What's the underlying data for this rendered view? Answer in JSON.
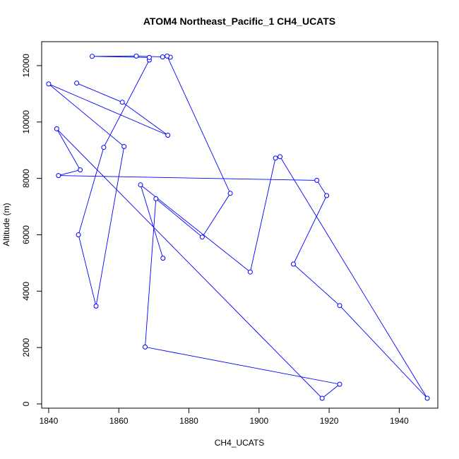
{
  "chart_data": {
    "type": "line",
    "title": "ATOM4 Northeast_Pacific_1 CH4_UCATS",
    "xlabel": "CH4_UCATS",
    "ylabel": "Altitude (m)",
    "xlim": [
      1838,
      1951
    ],
    "ylim": [
      -150,
      12850
    ],
    "xticks": [
      1840,
      1860,
      1880,
      1900,
      1920,
      1940
    ],
    "yticks": [
      0,
      2000,
      4000,
      6000,
      8000,
      10000,
      12000
    ],
    "grid": false,
    "line_color": "#0000ff",
    "marker": "open-circle",
    "series": [
      {
        "x": [
          1848,
          1861,
          1874,
          1840,
          1861.5,
          1853.5,
          1848.5,
          1855.7,
          1868.7,
          1868.7,
          1852.4,
          1865,
          1872.5,
          1874.7,
          1873.8,
          1891.8,
          1883.8,
          1870.6,
          1867.5,
          1923,
          1918,
          1842.3,
          1849,
          1842.8,
          1916.5,
          1919.3,
          1909.8,
          1923,
          1948,
          1906,
          1904.7,
          1897.5,
          1866.2,
          1872.6
        ],
        "y": [
          11380,
          10700,
          9530,
          11350,
          9130,
          3470,
          6000,
          9100,
          12200,
          12290,
          12330,
          12340,
          12310,
          12300,
          12340,
          7470,
          5920,
          7280,
          2020,
          700,
          200,
          9760,
          8300,
          8100,
          7930,
          7390,
          4960,
          3490,
          200,
          8770,
          8720,
          4680,
          7770,
          5170
        ]
      }
    ]
  }
}
